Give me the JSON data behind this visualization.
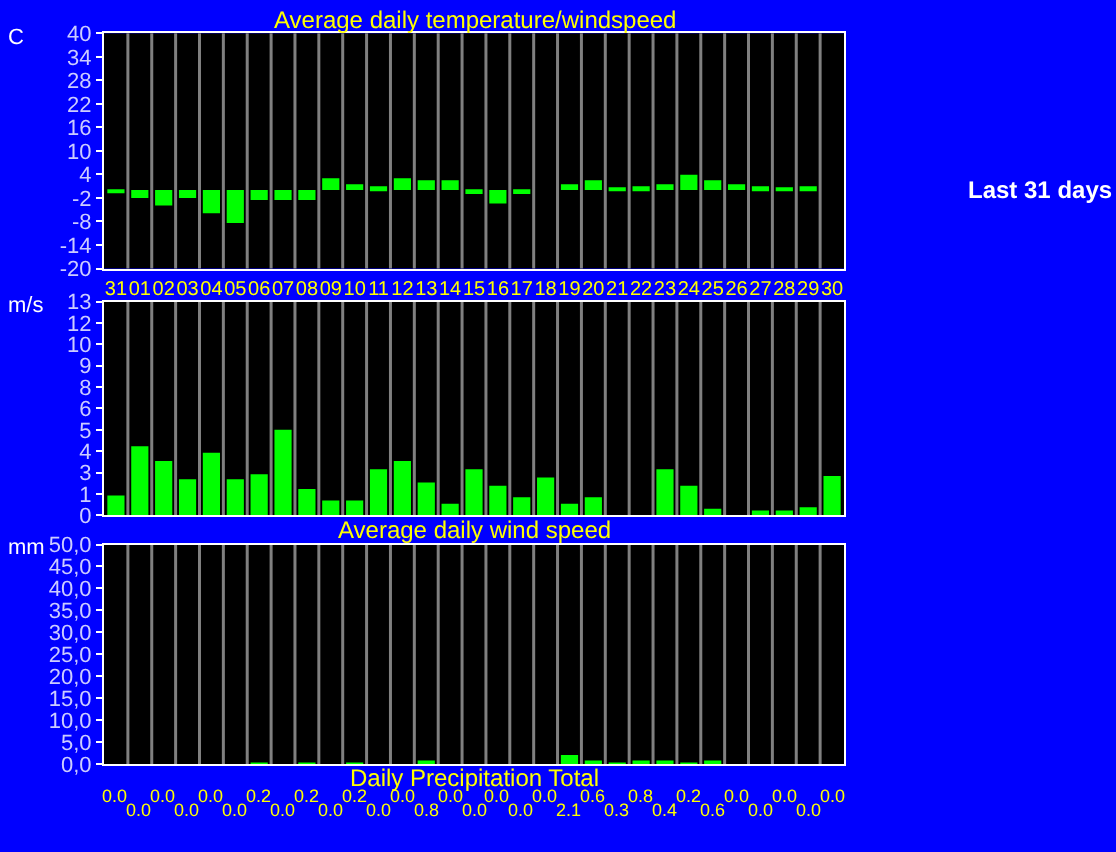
{
  "chart_data": [
    {
      "type": "bar",
      "title": "Average daily temperature/windspeed",
      "ylabel": "C",
      "categories": [
        "31",
        "01",
        "02",
        "03",
        "04",
        "05",
        "06",
        "07",
        "08",
        "09",
        "10",
        "11",
        "12",
        "13",
        "14",
        "15",
        "16",
        "17",
        "18",
        "19",
        "20",
        "21",
        "22",
        "23",
        "24",
        "25",
        "26",
        "27",
        "28",
        "29",
        "30"
      ],
      "values": [
        -0.5,
        -2.0,
        -3.9,
        -2.0,
        -5.9,
        -8.4,
        -2.5,
        -2.5,
        -2.5,
        3.0,
        1.5,
        1.0,
        3.0,
        2.5,
        2.5,
        -1.0,
        -3.4,
        -1.0,
        0.0,
        1.5,
        2.5,
        0.5,
        1.0,
        1.5,
        3.9,
        2.5,
        1.5,
        1.0,
        0.5,
        1.0,
        0.0
      ],
      "color": "#00ff00",
      "ylim": [
        -20,
        40
      ],
      "yticks": [
        -20,
        -14,
        -8,
        -2,
        4,
        10,
        16,
        22,
        28,
        34,
        40
      ],
      "grid": "x",
      "annotations": [
        "Last 31 days"
      ]
    },
    {
      "type": "bar",
      "title": "Average daily wind speed",
      "ylabel": "m/s",
      "categories": [
        "31",
        "01",
        "02",
        "03",
        "04",
        "05",
        "06",
        "07",
        "08",
        "09",
        "10",
        "11",
        "12",
        "13",
        "14",
        "15",
        "16",
        "17",
        "18",
        "19",
        "20",
        "21",
        "22",
        "23",
        "24",
        "25",
        "26",
        "27",
        "28",
        "29",
        "30"
      ],
      "values": [
        1.2,
        4.2,
        3.3,
        2.2,
        3.8,
        2.2,
        2.5,
        5.2,
        1.6,
        0.9,
        0.9,
        2.8,
        3.3,
        2.0,
        0.7,
        2.8,
        1.8,
        1.1,
        2.3,
        0.7,
        1.1,
        0,
        0,
        2.8,
        1.8,
        0.4,
        0,
        0.3,
        0.3,
        0.5,
        2.4
      ],
      "color": "#00ff00",
      "ylim": [
        0,
        13
      ],
      "yticks": [
        0,
        {
          "value": 1.3,
          "label": "1"
        },
        {
          "value": 2.6,
          "label": "3"
        },
        {
          "value": 3.9,
          "label": "4"
        },
        {
          "value": 5.2,
          "label": "5"
        },
        {
          "value": 6.5,
          "label": "6"
        },
        {
          "value": 7.8,
          "label": "8"
        },
        {
          "value": 9.1,
          "label": "9"
        },
        {
          "value": 10.4,
          "label": "10"
        },
        {
          "value": 11.7,
          "label": "12"
        },
        13
      ],
      "grid": "x",
      "tick_labels": "y"
    },
    {
      "type": "bar",
      "title": "Daily Precipitation Total",
      "ylabel": "mm",
      "categories": [
        "31",
        "01",
        "02",
        "03",
        "04",
        "05",
        "06",
        "07",
        "08",
        "09",
        "10",
        "11",
        "12",
        "13",
        "14",
        "15",
        "16",
        "17",
        "18",
        "19",
        "20",
        "21",
        "22",
        "23",
        "24",
        "25",
        "26",
        "27",
        "28",
        "29",
        "30"
      ],
      "values": [
        0,
        0,
        0,
        0,
        0,
        0,
        0.2,
        0,
        0.2,
        0,
        0.2,
        0,
        0,
        0.8,
        0,
        0,
        0,
        0,
        0,
        2.1,
        0.6,
        0.3,
        0.8,
        0.4,
        0.2,
        0.6,
        0,
        0,
        0,
        0,
        0
      ],
      "value_labels": [
        "0.0",
        "0.0",
        "0.0",
        "0.0",
        "0.0",
        "0.0",
        "0.2",
        "0.0",
        "0.2",
        "0.0",
        "0.2",
        "0.0",
        "0.0",
        "0.8",
        "0.0",
        "0.0",
        "0.0",
        "0.0",
        "0.0",
        "2.1",
        "0.6",
        "0.3",
        "0.8",
        "0.4",
        "0.2",
        "0.6",
        "0.0",
        "0.0",
        "0.0",
        "0.0",
        "0.0"
      ],
      "color": "#00ff00",
      "ylim": [
        0,
        50
      ],
      "yticks": [
        {
          "value": 0,
          "label": "0,0"
        },
        {
          "value": 5,
          "label": "5,0"
        },
        {
          "value": 10,
          "label": "10,0"
        },
        {
          "value": 15,
          "label": "15,0"
        },
        {
          "value": 20,
          "label": "20,0"
        },
        {
          "value": 25,
          "label": "25,0"
        },
        {
          "value": 30,
          "label": "30,0"
        },
        {
          "value": 35,
          "label": "35,0"
        },
        {
          "value": 40,
          "label": "40,0"
        },
        {
          "value": 45,
          "label": "45,0"
        },
        {
          "value": 50,
          "label": "50,0"
        }
      ],
      "grid": "x",
      "tick_labels": "y"
    }
  ]
}
